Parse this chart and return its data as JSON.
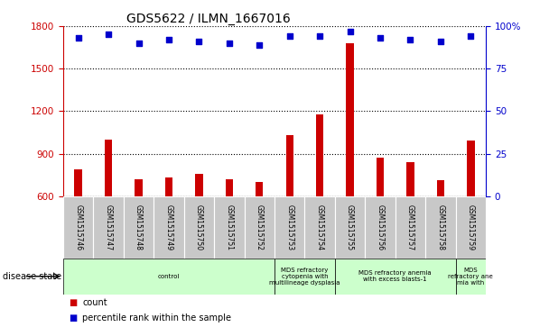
{
  "title": "GDS5622 / ILMN_1667016",
  "samples": [
    "GSM1515746",
    "GSM1515747",
    "GSM1515748",
    "GSM1515749",
    "GSM1515750",
    "GSM1515751",
    "GSM1515752",
    "GSM1515753",
    "GSM1515754",
    "GSM1515755",
    "GSM1515756",
    "GSM1515757",
    "GSM1515758",
    "GSM1515759"
  ],
  "counts": [
    790,
    1000,
    720,
    730,
    760,
    720,
    700,
    1030,
    1175,
    1680,
    870,
    840,
    710,
    990
  ],
  "percentiles": [
    93,
    95,
    90,
    92,
    91,
    90,
    89,
    94,
    94,
    97,
    93,
    92,
    91,
    94
  ],
  "ylim_left": [
    600,
    1800
  ],
  "ylim_right": [
    0,
    100
  ],
  "yticks_left": [
    600,
    900,
    1200,
    1500,
    1800
  ],
  "yticks_right": [
    0,
    25,
    50,
    75,
    100
  ],
  "disease_groups": [
    {
      "label": "control",
      "start": 0,
      "end": 7,
      "color": "#ccffcc"
    },
    {
      "label": "MDS refractory\ncytopenia with\nmultilineage dysplasia",
      "start": 7,
      "end": 9,
      "color": "#ccffcc"
    },
    {
      "label": "MDS refractory anemia\nwith excess blasts-1",
      "start": 9,
      "end": 13,
      "color": "#ccffcc"
    },
    {
      "label": "MDS\nrefractory ane\nmia with",
      "start": 13,
      "end": 14,
      "color": "#ccffcc"
    }
  ],
  "bar_color": "#cc0000",
  "dot_color": "#0000cc",
  "left_color": "#cc0000",
  "right_color": "#0000cc",
  "label_count": "count",
  "label_percentile": "percentile rank within the sample",
  "tick_bg_color": "#c8c8c8",
  "bar_width": 0.35,
  "dot_size": 20
}
